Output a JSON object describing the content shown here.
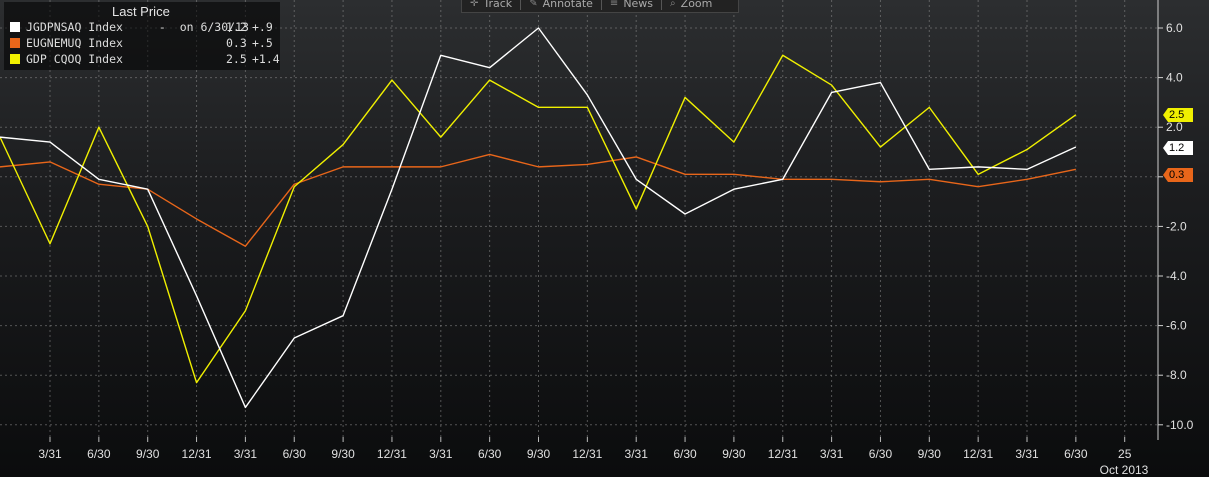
{
  "toolbar": {
    "track": "Track",
    "annotate": "Annotate",
    "news": "News",
    "zoom": "Zoom"
  },
  "legend": {
    "title": "Last Price",
    "items": [
      {
        "name": "JGDPNSAQ Index",
        "extra": " -  on 6/30/13",
        "last": "1.2",
        "change": "+.9",
        "color": "#ffffff"
      },
      {
        "name": "EUGNEMUQ Index",
        "extra": "",
        "last": "0.3",
        "change": "+.5",
        "color": "#e8661a"
      },
      {
        "name": "GDP CQOQ Index",
        "extra": "",
        "last": "2.5",
        "change": "+1.4",
        "color": "#f0f000"
      }
    ]
  },
  "chart_data": {
    "type": "line",
    "x_labels": [
      "3/31",
      "6/30",
      "9/30",
      "12/31",
      "3/31",
      "6/30",
      "9/30",
      "12/31",
      "3/31",
      "6/30",
      "9/30",
      "12/31",
      "3/31",
      "6/30",
      "9/30",
      "12/31",
      "3/31",
      "6/30",
      "9/30",
      "12/31",
      "3/31",
      "6/30",
      "25"
    ],
    "x_sublabel": "Oct 2013",
    "y_ticks": [
      "6.0",
      "4.0",
      "2.0",
      "0.0",
      "-2.0",
      "-4.0",
      "-6.0",
      "-8.0",
      "-10.0"
    ],
    "y_tick_values": [
      6,
      4,
      2,
      0,
      -2,
      -4,
      -6,
      -8,
      -10
    ],
    "ylim": [
      -10.6,
      7.2
    ],
    "grid": true,
    "series": [
      {
        "name": "JGDPNSAQ Index",
        "color": "#ffffff",
        "values": [
          1.6,
          1.4,
          -0.1,
          -0.5,
          -4.8,
          -9.3,
          -6.5,
          -5.6,
          -0.5,
          4.9,
          4.4,
          6.0,
          3.3,
          -0.1,
          -1.5,
          -0.5,
          -0.1,
          3.4,
          3.8,
          0.3,
          0.4,
          0.3,
          1.2
        ],
        "last_label": "1.2"
      },
      {
        "name": "EUGNEMUQ Index",
        "color": "#e8661a",
        "values": [
          0.4,
          0.6,
          -0.3,
          -0.5,
          -1.7,
          -2.8,
          -0.3,
          0.4,
          0.4,
          0.4,
          0.9,
          0.4,
          0.5,
          0.8,
          0.1,
          0.1,
          -0.1,
          -0.1,
          -0.2,
          -0.1,
          -0.4,
          -0.1,
          0.3
        ],
        "last_label": "0.3"
      },
      {
        "name": "GDP CQOQ Index",
        "color": "#f0f000",
        "values": [
          1.6,
          -2.7,
          2.0,
          -2.0,
          -8.3,
          -5.4,
          -0.4,
          1.3,
          3.9,
          1.6,
          3.9,
          2.8,
          2.8,
          -1.3,
          3.2,
          1.4,
          4.9,
          3.7,
          1.2,
          2.8,
          0.1,
          1.1,
          2.5
        ],
        "last_label": "2.5"
      }
    ]
  }
}
